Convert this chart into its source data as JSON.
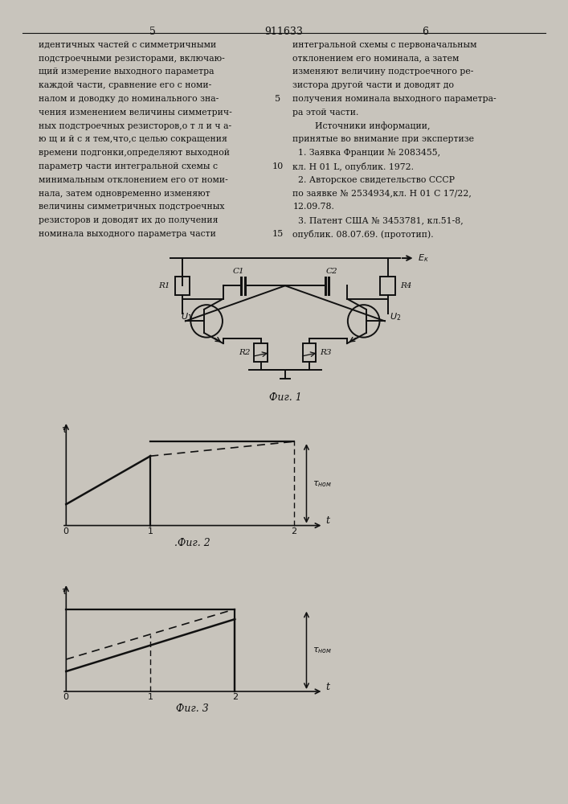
{
  "bg_color": "#c8c4bc",
  "page_color": "#e4e0d8",
  "text_color": "#111111",
  "page_number_left": "5",
  "page_number_center": "911633",
  "page_number_right": "6",
  "left_col_lines": [
    "идентичных частей с симметричными",
    "подстроечными резисторами, включаю-",
    "щий измерение выходного параметра",
    "каждой части, сравнение его с номи-",
    "налом и доводку до номинального зна-",
    "чения изменением величины симметрич-",
    "ных подстроечных резисторов,о т л и ч а-",
    "ю щ и й с я тем,что,с целью сокращения",
    "времени подгонки,определяют выходной",
    "параметр части интегральной схемы с",
    "минимальным отклонением его от номи-",
    "нала, затем одновременно изменяют",
    "величины симметричных подстроечных",
    "резисторов и доводят их до получения",
    "номинала выходного параметра части"
  ],
  "right_col_lines": [
    "интегральной схемы с первоначальным",
    "отклонением его номинала, а затем",
    "изменяют величину подстроечного ре-",
    "зистора другой части и доводят до",
    "получения номинала выходного параметра-",
    "ра этой части.",
    "        Источники информации,",
    "принятые во внимание при экспертизе",
    "  1. Заявка Франции № 2083455,",
    "кл. H 01 L, опублик. 1972.",
    "  2. Авторское свидетельство СССР",
    "по заявке № 2534934,кл. H 01 С 17/22,",
    "12.09.78.",
    "  3. Патент США № 3453781, кл.51-8,",
    "опублик. 08.07.69. (прототип)."
  ],
  "lineno_positions": [
    {
      "num": "5",
      "row": 4
    },
    {
      "num": "10",
      "row": 9
    },
    {
      "num": "15",
      "row": 14
    }
  ],
  "fig1_caption": "Фиг. 1",
  "fig2_caption": ".Фиг. 2",
  "fig3_caption": "Фиг. 3"
}
